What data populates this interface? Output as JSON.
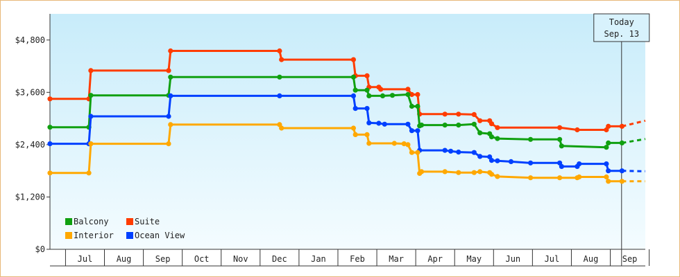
{
  "chart_data": {
    "type": "line",
    "title": "",
    "xlabel": "",
    "ylabel": "",
    "ylim": [
      0,
      5400
    ],
    "yticks": [
      "$0",
      "$1,200",
      "$2,400",
      "$3,600",
      "$4,800"
    ],
    "ytick_values": [
      0,
      1200,
      2400,
      3600,
      4800
    ],
    "x_range": [
      0,
      15.3
    ],
    "months": [
      "Jul",
      "Aug",
      "Sep",
      "Oct",
      "Nov",
      "Dec",
      "Jan",
      "Feb",
      "Mar",
      "Apr",
      "May",
      "Jun",
      "Jul",
      "Aug",
      "Sep"
    ],
    "legend_position": "bottom-left",
    "grid": false,
    "today_marker": {
      "line1": "Today",
      "line2": "Sep. 13",
      "x": 14.69
    },
    "series": [
      {
        "name": "Suite",
        "color": "#ff3c00",
        "points": [
          [
            0.0,
            3450
          ],
          [
            1.0,
            3450
          ],
          [
            1.05,
            4100
          ],
          [
            3.05,
            4100
          ],
          [
            3.1,
            4550
          ],
          [
            5.9,
            4550
          ],
          [
            5.95,
            4350
          ],
          [
            7.8,
            4350
          ],
          [
            7.85,
            3980
          ],
          [
            8.15,
            3980
          ],
          [
            8.2,
            3720
          ],
          [
            8.45,
            3720
          ],
          [
            8.5,
            3670
          ],
          [
            9.2,
            3670
          ],
          [
            9.3,
            3550
          ],
          [
            9.45,
            3550
          ],
          [
            9.5,
            3100
          ],
          [
            10.15,
            3100
          ],
          [
            10.5,
            3100
          ],
          [
            10.9,
            3090
          ],
          [
            11.05,
            2950
          ],
          [
            11.3,
            2950
          ],
          [
            11.35,
            2880
          ],
          [
            11.5,
            2790
          ],
          [
            13.1,
            2790
          ],
          [
            13.55,
            2740
          ],
          [
            14.3,
            2740
          ],
          [
            14.35,
            2820
          ],
          [
            14.7,
            2820
          ]
        ],
        "forecast": [
          [
            14.7,
            2820
          ],
          [
            15.3,
            2950
          ]
        ]
      },
      {
        "name": "Balcony",
        "color": "#10a010",
        "points": [
          [
            0.0,
            2800
          ],
          [
            1.0,
            2800
          ],
          [
            1.05,
            3530
          ],
          [
            3.05,
            3530
          ],
          [
            3.1,
            3950
          ],
          [
            5.9,
            3950
          ],
          [
            7.8,
            3950
          ],
          [
            7.85,
            3650
          ],
          [
            8.15,
            3650
          ],
          [
            8.2,
            3520
          ],
          [
            8.55,
            3520
          ],
          [
            8.8,
            3530
          ],
          [
            9.2,
            3550
          ],
          [
            9.3,
            3280
          ],
          [
            9.45,
            3280
          ],
          [
            9.5,
            2830
          ],
          [
            9.55,
            2850
          ],
          [
            10.15,
            2850
          ],
          [
            10.5,
            2850
          ],
          [
            10.9,
            2870
          ],
          [
            11.05,
            2670
          ],
          [
            11.3,
            2650
          ],
          [
            11.35,
            2580
          ],
          [
            11.5,
            2540
          ],
          [
            12.35,
            2520
          ],
          [
            13.1,
            2520
          ],
          [
            13.15,
            2370
          ],
          [
            14.3,
            2340
          ],
          [
            14.35,
            2440
          ],
          [
            14.7,
            2440
          ]
        ],
        "forecast": [
          [
            14.7,
            2440
          ],
          [
            15.3,
            2530
          ]
        ]
      },
      {
        "name": "Ocean View",
        "color": "#0040ff",
        "points": [
          [
            0.0,
            2420
          ],
          [
            1.0,
            2420
          ],
          [
            1.05,
            3050
          ],
          [
            3.05,
            3050
          ],
          [
            3.1,
            3520
          ],
          [
            5.9,
            3520
          ],
          [
            7.8,
            3520
          ],
          [
            7.85,
            3230
          ],
          [
            8.15,
            3230
          ],
          [
            8.2,
            2900
          ],
          [
            8.45,
            2890
          ],
          [
            8.6,
            2870
          ],
          [
            9.2,
            2870
          ],
          [
            9.3,
            2720
          ],
          [
            9.45,
            2720
          ],
          [
            9.5,
            2270
          ],
          [
            10.15,
            2270
          ],
          [
            10.3,
            2250
          ],
          [
            10.5,
            2230
          ],
          [
            10.9,
            2220
          ],
          [
            11.05,
            2130
          ],
          [
            11.3,
            2120
          ],
          [
            11.35,
            2040
          ],
          [
            11.5,
            2030
          ],
          [
            11.85,
            2010
          ],
          [
            12.35,
            1980
          ],
          [
            13.1,
            1980
          ],
          [
            13.15,
            1900
          ],
          [
            13.55,
            1900
          ],
          [
            13.6,
            1960
          ],
          [
            14.3,
            1960
          ],
          [
            14.35,
            1800
          ],
          [
            14.7,
            1800
          ]
        ],
        "forecast": [
          [
            14.7,
            1800
          ],
          [
            15.3,
            1790
          ]
        ]
      },
      {
        "name": "Interior",
        "color": "#ffa800",
        "points": [
          [
            0.0,
            1750
          ],
          [
            1.0,
            1750
          ],
          [
            1.05,
            2420
          ],
          [
            3.05,
            2420
          ],
          [
            3.1,
            2860
          ],
          [
            5.9,
            2860
          ],
          [
            5.95,
            2780
          ],
          [
            7.8,
            2780
          ],
          [
            7.85,
            2630
          ],
          [
            8.15,
            2630
          ],
          [
            8.2,
            2430
          ],
          [
            8.85,
            2430
          ],
          [
            9.1,
            2420
          ],
          [
            9.2,
            2400
          ],
          [
            9.3,
            2220
          ],
          [
            9.45,
            2220
          ],
          [
            9.5,
            1740
          ],
          [
            9.55,
            1780
          ],
          [
            10.15,
            1780
          ],
          [
            10.5,
            1760
          ],
          [
            10.9,
            1760
          ],
          [
            11.05,
            1780
          ],
          [
            11.3,
            1760
          ],
          [
            11.35,
            1720
          ],
          [
            11.5,
            1670
          ],
          [
            12.35,
            1640
          ],
          [
            13.1,
            1640
          ],
          [
            13.55,
            1640
          ],
          [
            13.6,
            1660
          ],
          [
            14.3,
            1660
          ],
          [
            14.35,
            1560
          ],
          [
            14.7,
            1560
          ]
        ],
        "forecast": [
          [
            14.7,
            1560
          ],
          [
            15.3,
            1560
          ]
        ]
      }
    ]
  }
}
